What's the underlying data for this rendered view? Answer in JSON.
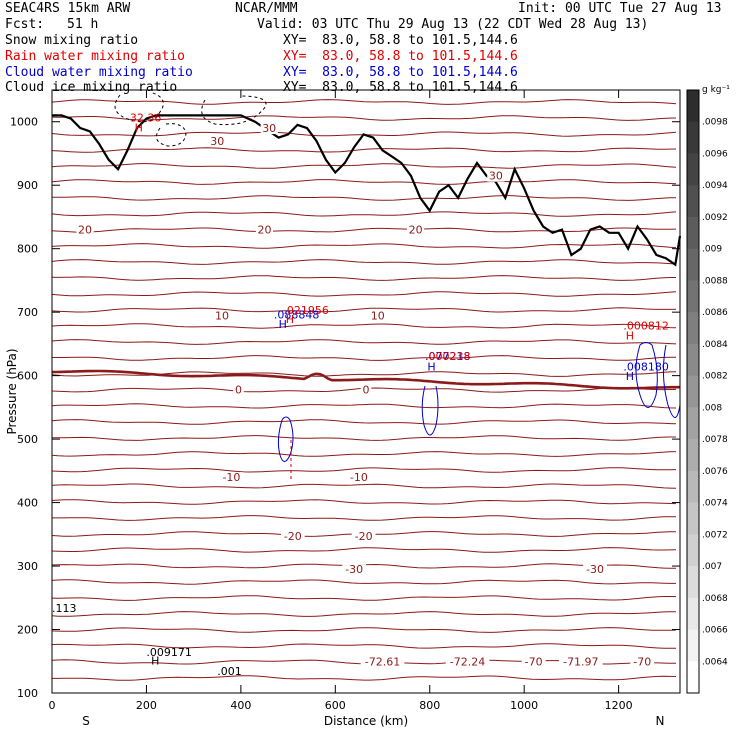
{
  "header": {
    "model": "SEAC4RS 15km ARW",
    "org": "NCAR/MMM",
    "init": "Init: 00 UTC Tue 27 Aug 13",
    "fcst_label": "Fcst:",
    "fcst_value": "51 h",
    "valid": "Valid: 03 UTC Thu 29 Aug 13 (22 CDT Wed 28 Aug 13)"
  },
  "legend": [
    {
      "name": "Snow mixing ratio",
      "xy": "XY=  83.0, 58.8 to 101.5,144.6",
      "color": "#000000"
    },
    {
      "name": "Rain water mixing ratio",
      "xy": "XY=  83.0, 58.8 to 101.5,144.6",
      "color": "#e00000"
    },
    {
      "name": "Cloud water mixing ratio",
      "xy": "XY=  83.0, 58.8 to 101.5,144.6",
      "color": "#0000cc"
    },
    {
      "name": "Cloud ice mixing ratio",
      "xy": "XY=  83.0, 58.8 to 101.5,144.6",
      "color": "#000000"
    }
  ],
  "chart_data": {
    "type": "line",
    "xlabel": "Distance (km)",
    "ylabel": "Pressure (hPa)",
    "xlim": [
      0,
      1330
    ],
    "ylim": [
      1050,
      100
    ],
    "xticks": [
      0,
      200,
      400,
      600,
      800,
      1000,
      1200
    ],
    "yticks": [
      200,
      300,
      400,
      500,
      600,
      700,
      800,
      900,
      1000
    ],
    "y_top_label": "100",
    "endpoints": {
      "left": "S",
      "right": "N"
    },
    "isotherm_color": "#8b1a1a",
    "terrain": {
      "name": "terrain",
      "x": [
        0,
        20,
        40,
        60,
        80,
        100,
        120,
        140,
        160,
        180,
        200,
        220,
        250,
        300,
        350,
        400,
        430,
        460,
        480,
        500,
        520,
        540,
        560,
        580,
        600,
        620,
        640,
        660,
        680,
        700,
        720,
        740,
        760,
        780,
        800,
        820,
        840,
        860,
        880,
        900,
        920,
        940,
        960,
        980,
        1000,
        1020,
        1040,
        1060,
        1080,
        1100,
        1120,
        1140,
        1160,
        1180,
        1200,
        1220,
        1240,
        1260,
        1280,
        1300,
        1320,
        1330
      ],
      "p": [
        1010,
        1010,
        1005,
        990,
        985,
        965,
        940,
        925,
        955,
        990,
        1005,
        1010,
        1010,
        1010,
        1010,
        1010,
        1000,
        985,
        975,
        980,
        995,
        990,
        970,
        940,
        920,
        935,
        960,
        980,
        975,
        955,
        945,
        935,
        915,
        880,
        860,
        890,
        900,
        880,
        910,
        935,
        915,
        905,
        880,
        925,
        895,
        860,
        835,
        825,
        830,
        790,
        800,
        830,
        835,
        825,
        825,
        800,
        835,
        815,
        790,
        785,
        775,
        820
      ]
    },
    "isotherms": [
      {
        "label": "-72.61",
        "p": 150,
        "lx": 700
      },
      {
        "label": "-72.24",
        "p": 150,
        "lx": 880
      },
      {
        "label": "-70",
        "p": 150,
        "lx": 1020
      },
      {
        "label": "-71.97",
        "p": 150,
        "lx": 1120
      },
      {
        "label": "-70",
        "p": 150,
        "lx": 1250
      },
      {
        "label": "-30",
        "p": 295,
        "lx": 640
      },
      {
        "label": "-30",
        "p": 295,
        "lx": 1150
      },
      {
        "label": "-20",
        "p": 347,
        "lx": 510
      },
      {
        "label": "-20",
        "p": 347,
        "lx": 660
      },
      {
        "label": "-10",
        "p": 440,
        "lx": 380
      },
      {
        "label": "-10",
        "p": 440,
        "lx": 650
      },
      {
        "label": "0",
        "p": 578,
        "lx": 395
      },
      {
        "label": "0",
        "p": 578,
        "lx": 665
      },
      {
        "label": "10",
        "p": 695,
        "lx": 360
      },
      {
        "label": "10",
        "p": 695,
        "lx": 690
      },
      {
        "label": "20",
        "p": 830,
        "lx": 70
      },
      {
        "label": "20",
        "p": 830,
        "lx": 450
      },
      {
        "label": "20",
        "p": 830,
        "lx": 770
      },
      {
        "label": "30",
        "p": 915,
        "lx": 940
      },
      {
        "label": "30",
        "p": 970,
        "lx": 350
      },
      {
        "label": "30",
        "p": 990,
        "lx": 460
      }
    ],
    "annotations": [
      {
        "text": ".001",
        "x": 350,
        "p": 128,
        "color": "#000000"
      },
      {
        "text": "H",
        "x": 210,
        "p": 145,
        "color": "#000000"
      },
      {
        "text": ".009171",
        "x": 200,
        "p": 158,
        "color": "#000000"
      },
      {
        "text": ".113",
        "x": 0,
        "p": 228,
        "color": "#000000"
      },
      {
        "text": "H",
        "x": 480,
        "p": 675,
        "color": "#0000cc"
      },
      {
        "text": ".088848",
        "x": 470,
        "p": 690,
        "color": "#0000cc"
      },
      {
        "text": "H",
        "x": 495,
        "p": 683,
        "color": "#e00000"
      },
      {
        "text": ".021956",
        "x": 490,
        "p": 697,
        "color": "#e00000"
      },
      {
        "text": "H",
        "x": 795,
        "p": 608,
        "color": "#0000cc"
      },
      {
        "text": ".077218",
        "x": 790,
        "p": 625,
        "color": "#0000cc"
      },
      {
        "text": ".000238",
        "x": 790,
        "p": 625,
        "color": "#e00000"
      },
      {
        "text": "H",
        "x": 1215,
        "p": 593,
        "color": "#0000cc"
      },
      {
        "text": ".008180",
        "x": 1210,
        "p": 608,
        "color": "#0000cc"
      },
      {
        "text": "H",
        "x": 1215,
        "p": 657,
        "color": "#e00000"
      },
      {
        "text": ".000812",
        "x": 1210,
        "p": 673,
        "color": "#e00000"
      },
      {
        "text": "H",
        "x": 175,
        "p": 985,
        "color": "#e00000"
      },
      {
        "text": "32.36",
        "x": 165,
        "p": 1000,
        "color": "#e00000"
      }
    ],
    "colorbar": {
      "unit": "g kg⁻¹",
      "labels": [
        ".0098",
        ".0096",
        ".0094",
        ".0092",
        ".009",
        ".0088",
        ".0086",
        ".0084",
        ".0082",
        ".008",
        ".0078",
        ".0076",
        ".0074",
        ".0072",
        ".007",
        ".0068",
        ".0066",
        ".0064"
      ]
    }
  }
}
